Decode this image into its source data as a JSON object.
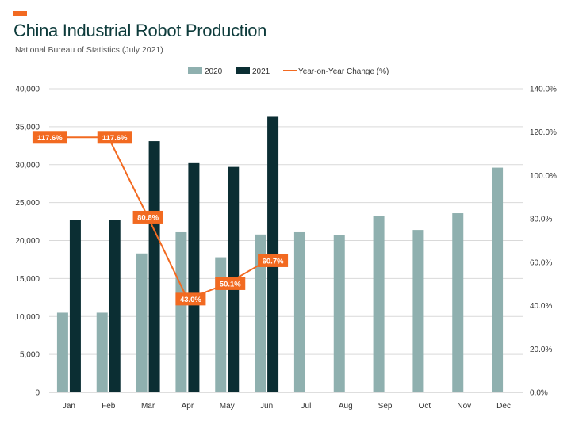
{
  "header": {
    "title": "China Industrial Robot Production",
    "subtitle": "National Bureau of Statistics (July 2021)"
  },
  "colors": {
    "accent": "#f26a21",
    "series_2020": "#8fb0af",
    "series_2021": "#0b2e33",
    "line": "#f26a21",
    "grid": "#d9d9d9"
  },
  "chart_data": {
    "type": "bar",
    "categories": [
      "Jan",
      "Feb",
      "Mar",
      "Apr",
      "May",
      "Jun",
      "Jul",
      "Aug",
      "Sep",
      "Oct",
      "Nov",
      "Dec"
    ],
    "series": [
      {
        "name": "2020",
        "type": "bar",
        "axis": "left",
        "values": [
          10500,
          10500,
          18300,
          21100,
          17800,
          20800,
          21100,
          20700,
          23200,
          21400,
          23600,
          29600
        ]
      },
      {
        "name": "2021",
        "type": "bar",
        "axis": "left",
        "values": [
          22700,
          22700,
          33100,
          30200,
          29700,
          36400,
          null,
          null,
          null,
          null,
          null,
          null
        ]
      },
      {
        "name": "Year-on-Year Change (%)",
        "type": "line",
        "axis": "right",
        "values": [
          117.6,
          117.6,
          80.8,
          43.0,
          50.1,
          60.7,
          null,
          null,
          null,
          null,
          null,
          null
        ],
        "labels": [
          "117.6%",
          "117.6%",
          "80.8%",
          "43.0%",
          "50.1%",
          "60.7%"
        ]
      }
    ],
    "y_left": {
      "ylim": [
        0,
        40000
      ],
      "ticks": [
        0,
        5000,
        10000,
        15000,
        20000,
        25000,
        30000,
        35000,
        40000
      ],
      "tick_labels": [
        "0",
        "5,000",
        "10,000",
        "15,000",
        "20,000",
        "25,000",
        "30,000",
        "35,000",
        "40,000"
      ]
    },
    "y_right": {
      "ylim": [
        0,
        140
      ],
      "ticks": [
        0,
        20,
        40,
        60,
        80,
        100,
        120,
        140
      ],
      "tick_labels": [
        "0.0%",
        "20.0%",
        "40.0%",
        "60.0%",
        "80.0%",
        "100.0%",
        "120.0%",
        "140.0%"
      ]
    },
    "grid": true,
    "legend_position": "top-center"
  }
}
